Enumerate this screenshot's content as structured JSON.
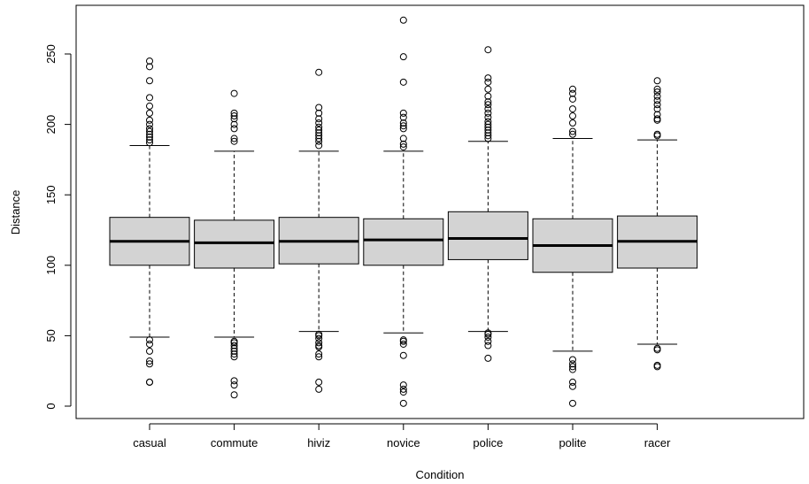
{
  "chart_data": {
    "type": "boxplot",
    "title": "",
    "xlabel": "Condition",
    "ylabel": "Distance",
    "ylim": [
      -8,
      280
    ],
    "y_ticks": [
      "0",
      "50",
      "100",
      "150",
      "200",
      "250"
    ],
    "box_fill": "#d3d3d3",
    "grid": false,
    "categories": [
      "casual",
      "commute",
      "hiviz",
      "novice",
      "police",
      "polite",
      "racer"
    ],
    "boxes": [
      {
        "q1": 100,
        "median": 117,
        "q3": 134,
        "lower_whisker": 49,
        "upper_whisker": 185,
        "outliers": [
          17,
          17,
          30,
          32,
          39,
          44,
          47,
          187,
          189,
          191,
          193,
          195,
          197,
          200,
          203,
          208,
          213,
          219,
          231,
          241,
          245
        ]
      },
      {
        "q1": 98,
        "median": 116,
        "q3": 132,
        "lower_whisker": 49,
        "upper_whisker": 181,
        "outliers": [
          8,
          15,
          18,
          35,
          37,
          39,
          41,
          43,
          45,
          46,
          188,
          190,
          197,
          200,
          204,
          206,
          208,
          222
        ]
      },
      {
        "q1": 101,
        "median": 117,
        "q3": 134,
        "lower_whisker": 53,
        "upper_whisker": 181,
        "outliers": [
          12,
          17,
          35,
          37,
          42,
          43,
          45,
          48,
          50,
          51,
          185,
          188,
          190,
          192,
          194,
          196,
          198,
          201,
          204,
          208,
          212,
          237
        ]
      },
      {
        "q1": 100,
        "median": 118,
        "q3": 133,
        "lower_whisker": 52,
        "upper_whisker": 181,
        "outliers": [
          2,
          10,
          12,
          15,
          36,
          44,
          46,
          47,
          184,
          186,
          190,
          197,
          199,
          201,
          205,
          208,
          230,
          248,
          274
        ]
      },
      {
        "q1": 104,
        "median": 119,
        "q3": 138,
        "lower_whisker": 53,
        "upper_whisker": 188,
        "outliers": [
          34,
          43,
          46,
          49,
          51,
          52,
          190,
          192,
          194,
          196,
          198,
          200,
          202,
          205,
          208,
          211,
          214,
          216,
          220,
          225,
          230,
          233,
          253
        ]
      },
      {
        "q1": 95,
        "median": 114,
        "q3": 133,
        "lower_whisker": 39,
        "upper_whisker": 190,
        "outliers": [
          2,
          14,
          17,
          26,
          28,
          30,
          33,
          193,
          195,
          201,
          206,
          211,
          218,
          222,
          225
        ]
      },
      {
        "q1": 98,
        "median": 117,
        "q3": 135,
        "lower_whisker": 44,
        "upper_whisker": 189,
        "outliers": [
          28,
          29,
          40,
          41,
          192,
          193,
          203,
          204,
          207,
          211,
          214,
          217,
          220,
          223,
          225,
          231
        ]
      }
    ]
  }
}
